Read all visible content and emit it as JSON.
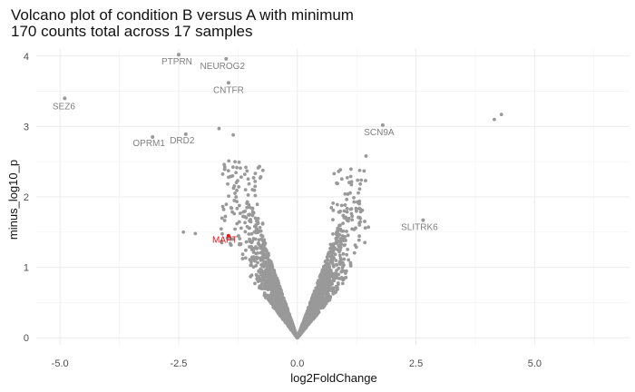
{
  "chart_data": {
    "type": "scatter",
    "title_lines": [
      "Volcano plot of condition B versus A with minimum",
      "170 counts total across 17 samples"
    ],
    "xlabel": "log2FoldChange",
    "ylabel": "minus_log10_p",
    "xlim": [
      -5.5,
      7.0
    ],
    "ylim": [
      -0.1,
      4.1
    ],
    "x_ticks": [
      -5.0,
      -2.5,
      0.0,
      2.5,
      5.0
    ],
    "x_tick_labels": [
      "-5.0",
      "-2.5",
      "0.0",
      "2.5",
      "5.0"
    ],
    "y_ticks": [
      0,
      1,
      2,
      3,
      4
    ],
    "y_tick_labels": [
      "0",
      "1",
      "2",
      "3",
      "4"
    ],
    "grid": true,
    "point_color": "#999999",
    "highlight_color": "#e31a1c",
    "labeled_points": [
      {
        "gene": "PTPRN",
        "x": -2.5,
        "y": 4.02,
        "highlight": false
      },
      {
        "gene": "NEUROG2",
        "x": -1.5,
        "y": 3.96,
        "highlight": false
      },
      {
        "gene": "CNTFR",
        "x": -1.45,
        "y": 3.62,
        "highlight": false
      },
      {
        "gene": "SEZ6",
        "x": -4.9,
        "y": 3.4,
        "highlight": false
      },
      {
        "gene": "OPRM1",
        "x": -3.05,
        "y": 2.85,
        "highlight": false
      },
      {
        "gene": "DRD2",
        "x": -2.35,
        "y": 2.89,
        "highlight": false
      },
      {
        "gene": "SCN9A",
        "x": 1.8,
        "y": 3.02,
        "highlight": false
      },
      {
        "gene": "SLITRK6",
        "x": 2.65,
        "y": 1.67,
        "highlight": false
      },
      {
        "gene": "MAPT",
        "x": -1.45,
        "y": 1.45,
        "highlight": true
      }
    ],
    "extra_points": [
      {
        "x": 4.15,
        "y": 3.1
      },
      {
        "x": 4.3,
        "y": 3.17
      },
      {
        "x": -1.65,
        "y": 2.97
      },
      {
        "x": -1.35,
        "y": 2.88
      },
      {
        "x": -2.15,
        "y": 1.48
      },
      {
        "x": -2.4,
        "y": 1.5
      }
    ]
  }
}
